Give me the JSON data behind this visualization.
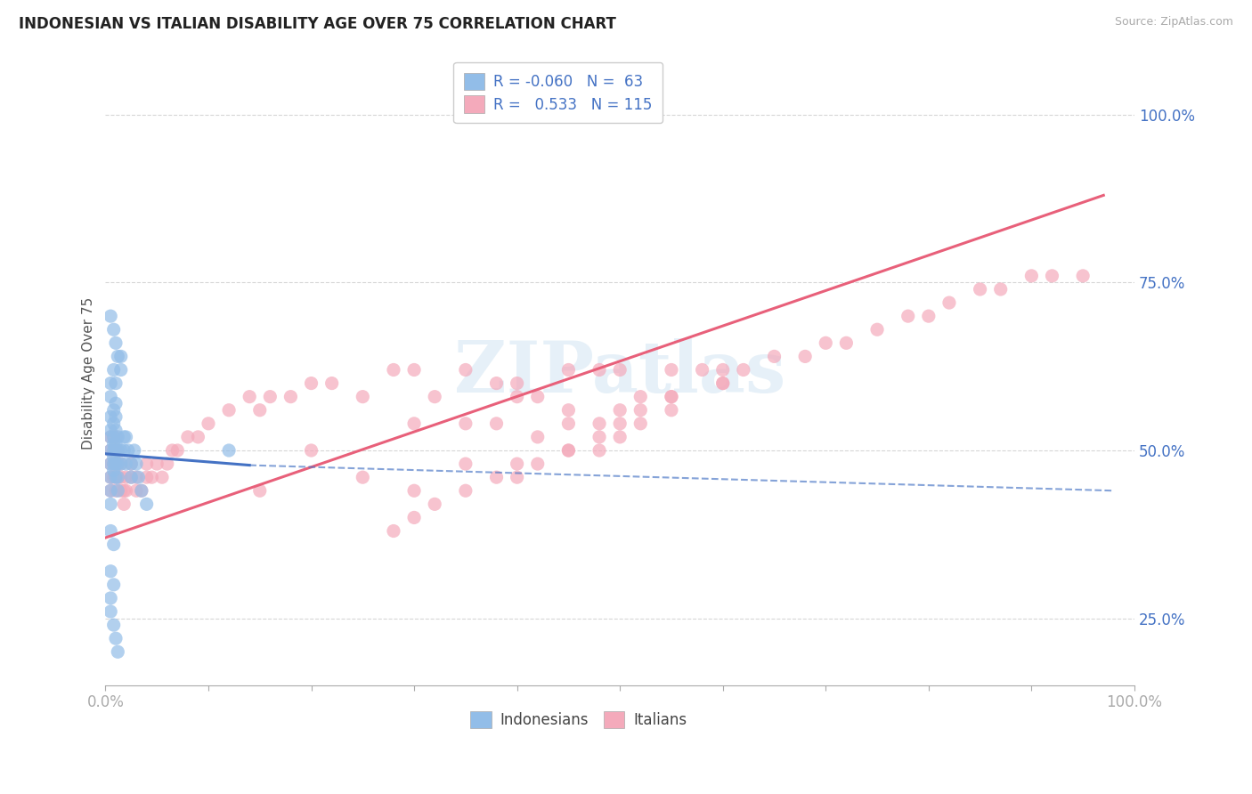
{
  "title": "INDONESIAN VS ITALIAN DISABILITY AGE OVER 75 CORRELATION CHART",
  "source": "Source: ZipAtlas.com",
  "ylabel": "Disability Age Over 75",
  "xlim": [
    0.0,
    1.0
  ],
  "ylim": [
    0.15,
    1.08
  ],
  "y_ticks": [
    0.25,
    0.5,
    0.75,
    1.0
  ],
  "y_tick_labels": [
    "25.0%",
    "50.0%",
    "75.0%",
    "100.0%"
  ],
  "indonesian_color": "#92BDE8",
  "italian_color": "#F4AABB",
  "indonesian_line_color": "#4472C4",
  "italian_line_color": "#E8607A",
  "legend_r_indonesian": "-0.060",
  "legend_n_indonesian": "63",
  "legend_r_italian": "0.533",
  "legend_n_italian": "115",
  "background_color": "#FFFFFF",
  "grid_color": "#CCCCCC",
  "watermark": "ZIPatlas",
  "indonesian_r": -0.06,
  "italian_r": 0.533,
  "indo_line_x_start": 0.0,
  "indo_line_x_solid_end": 0.14,
  "indo_line_x_dash_end": 0.98,
  "indo_line_y_start": 0.495,
  "indo_line_y_solid_end": 0.478,
  "indo_line_y_dash_end": 0.44,
  "ital_line_x_start": 0.0,
  "ital_line_x_end": 0.97,
  "ital_line_y_start": 0.37,
  "ital_line_y_end": 0.88,
  "indonesian_x": [
    0.005,
    0.005,
    0.005,
    0.005,
    0.005,
    0.005,
    0.005,
    0.005,
    0.005,
    0.005,
    0.008,
    0.008,
    0.008,
    0.008,
    0.008,
    0.008,
    0.008,
    0.008,
    0.008,
    0.01,
    0.01,
    0.01,
    0.01,
    0.01,
    0.01,
    0.01,
    0.01,
    0.012,
    0.012,
    0.012,
    0.012,
    0.012,
    0.015,
    0.015,
    0.015,
    0.015,
    0.018,
    0.018,
    0.02,
    0.02,
    0.022,
    0.025,
    0.025,
    0.028,
    0.03,
    0.032,
    0.035,
    0.04,
    0.005,
    0.008,
    0.01,
    0.012,
    0.005,
    0.008,
    0.005,
    0.008,
    0.12,
    0.005,
    0.005,
    0.008,
    0.01,
    0.012
  ],
  "indonesian_y": [
    0.52,
    0.5,
    0.48,
    0.46,
    0.55,
    0.53,
    0.6,
    0.58,
    0.44,
    0.42,
    0.51,
    0.49,
    0.47,
    0.56,
    0.54,
    0.52,
    0.5,
    0.48,
    0.62,
    0.5,
    0.48,
    0.46,
    0.53,
    0.51,
    0.57,
    0.55,
    0.6,
    0.5,
    0.48,
    0.46,
    0.44,
    0.52,
    0.5,
    0.48,
    0.64,
    0.62,
    0.52,
    0.5,
    0.52,
    0.48,
    0.5,
    0.48,
    0.46,
    0.5,
    0.48,
    0.46,
    0.44,
    0.42,
    0.7,
    0.68,
    0.66,
    0.64,
    0.38,
    0.36,
    0.32,
    0.3,
    0.5,
    0.28,
    0.26,
    0.24,
    0.22,
    0.2
  ],
  "italian_x": [
    0.005,
    0.005,
    0.005,
    0.005,
    0.005,
    0.008,
    0.008,
    0.008,
    0.008,
    0.01,
    0.01,
    0.01,
    0.01,
    0.012,
    0.012,
    0.012,
    0.015,
    0.015,
    0.015,
    0.018,
    0.018,
    0.02,
    0.02,
    0.025,
    0.025,
    0.03,
    0.03,
    0.035,
    0.04,
    0.04,
    0.045,
    0.05,
    0.055,
    0.06,
    0.065,
    0.07,
    0.08,
    0.09,
    0.1,
    0.12,
    0.14,
    0.15,
    0.16,
    0.18,
    0.2,
    0.22,
    0.25,
    0.28,
    0.3,
    0.32,
    0.35,
    0.38,
    0.4,
    0.42,
    0.45,
    0.48,
    0.5,
    0.52,
    0.55,
    0.58,
    0.6,
    0.62,
    0.65,
    0.68,
    0.7,
    0.72,
    0.75,
    0.78,
    0.8,
    0.82,
    0.85,
    0.87,
    0.9,
    0.92,
    0.95,
    0.3,
    0.35,
    0.4,
    0.45,
    0.5,
    0.38,
    0.52,
    0.45,
    0.55,
    0.42,
    0.48,
    0.6,
    0.4,
    0.35,
    0.3,
    0.25,
    0.2,
    0.15,
    0.45,
    0.5,
    0.55,
    0.4,
    0.5,
    0.6,
    0.55,
    0.48,
    0.52,
    0.42,
    0.45,
    0.35,
    0.3,
    0.38,
    0.28,
    0.32,
    0.48
  ],
  "italian_y": [
    0.5,
    0.48,
    0.46,
    0.44,
    0.52,
    0.48,
    0.46,
    0.5,
    0.52,
    0.5,
    0.48,
    0.44,
    0.52,
    0.46,
    0.48,
    0.5,
    0.46,
    0.44,
    0.48,
    0.42,
    0.44,
    0.46,
    0.44,
    0.48,
    0.46,
    0.44,
    0.46,
    0.44,
    0.46,
    0.48,
    0.46,
    0.48,
    0.46,
    0.48,
    0.5,
    0.5,
    0.52,
    0.52,
    0.54,
    0.56,
    0.58,
    0.56,
    0.58,
    0.58,
    0.6,
    0.6,
    0.58,
    0.62,
    0.62,
    0.58,
    0.62,
    0.6,
    0.6,
    0.58,
    0.62,
    0.62,
    0.62,
    0.58,
    0.62,
    0.62,
    0.62,
    0.62,
    0.64,
    0.64,
    0.66,
    0.66,
    0.68,
    0.7,
    0.7,
    0.72,
    0.74,
    0.74,
    0.76,
    0.76,
    0.76,
    0.54,
    0.54,
    0.58,
    0.56,
    0.56,
    0.54,
    0.56,
    0.54,
    0.58,
    0.52,
    0.54,
    0.6,
    0.48,
    0.48,
    0.44,
    0.46,
    0.5,
    0.44,
    0.5,
    0.52,
    0.58,
    0.46,
    0.54,
    0.6,
    0.56,
    0.52,
    0.54,
    0.48,
    0.5,
    0.44,
    0.4,
    0.46,
    0.38,
    0.42,
    0.5
  ]
}
